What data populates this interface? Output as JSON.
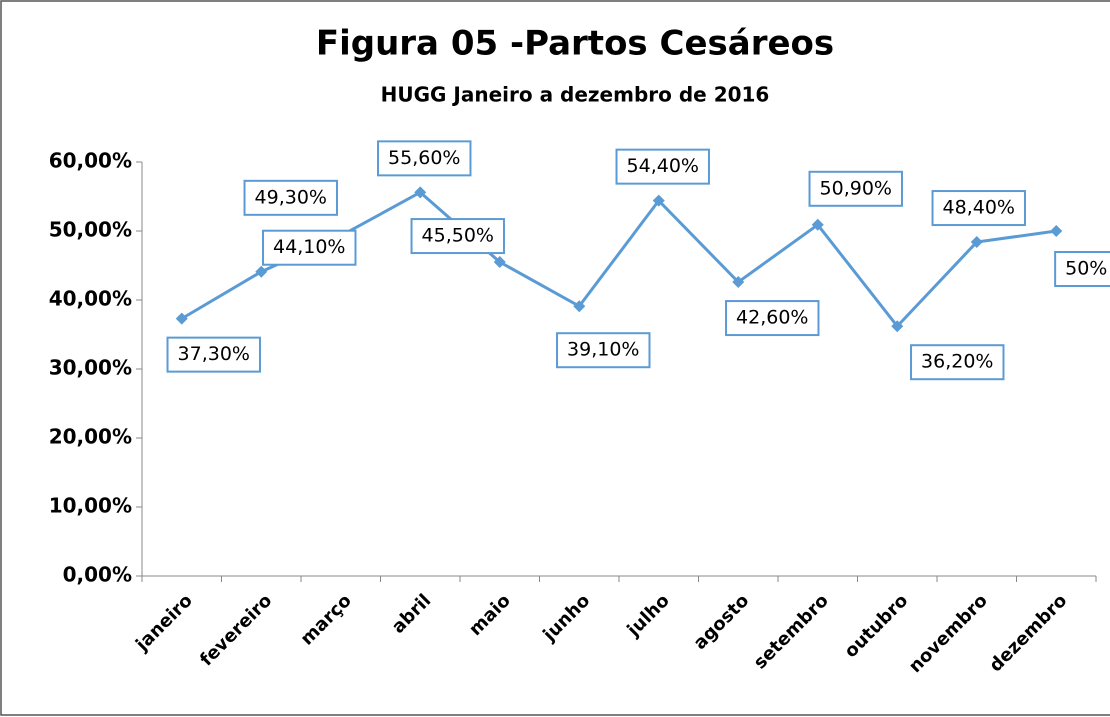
{
  "chart_data": {
    "type": "line",
    "title": "Figura 05 -Partos Cesáreos",
    "subtitle": "HUGG Janeiro a dezembro de 2016",
    "categories": [
      "janeiro",
      "fevereiro",
      "março",
      "abril",
      "maio",
      "junho",
      "julho",
      "agosto",
      "setembro",
      "outubro",
      "novembro",
      "dezembro"
    ],
    "series": [
      {
        "name": "Partos Cesáreos",
        "color": "#5b9bd5",
        "values": [
          37.3,
          44.1,
          49.3,
          55.6,
          45.5,
          39.1,
          54.4,
          42.6,
          50.9,
          36.2,
          48.4,
          50
        ],
        "value_labels": [
          "37,30%",
          "44,10%",
          "49,30%",
          "55,60%",
          "45,50%",
          "39,10%",
          "54,40%",
          "42,60%",
          "50,90%",
          "36,20%",
          "48,40%",
          "50%"
        ]
      }
    ],
    "ylim": [
      0,
      60
    ],
    "yticks": [
      {
        "value": 0,
        "label": "0,00%"
      },
      {
        "value": 10,
        "label": "10,00%"
      },
      {
        "value": 20,
        "label": "20,00%"
      },
      {
        "value": 30,
        "label": "30,00%"
      },
      {
        "value": 40,
        "label": "40,00%"
      },
      {
        "value": 50,
        "label": "50,00%"
      },
      {
        "value": 60,
        "label": "60,00%"
      }
    ],
    "grid": false
  }
}
